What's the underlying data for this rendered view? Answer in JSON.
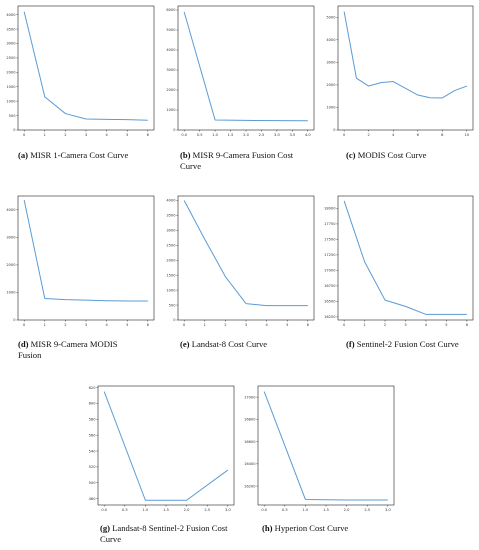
{
  "chart_data": [
    {
      "type": "line",
      "caption_label": "(a)",
      "caption_text": "MISR 1-Camera Cost Curve",
      "x": [
        0,
        1,
        2,
        3,
        4,
        5,
        6
      ],
      "values": [
        4100,
        1150,
        570,
        380,
        370,
        360,
        340
      ],
      "xticks": [
        0,
        1,
        2,
        3,
        4,
        5,
        6
      ],
      "xticklabels": [
        "0",
        "1",
        "2",
        "3",
        "4",
        "5",
        "6"
      ],
      "yticks": [
        0,
        500,
        1000,
        1500,
        2000,
        2500,
        3000,
        3500,
        4000
      ],
      "yticklabels": [
        "0",
        "500",
        "1000",
        "1500",
        "2000",
        "2500",
        "3000",
        "3500",
        "4000"
      ],
      "xlim": [
        -0.3,
        6.3
      ],
      "ylim": [
        0,
        4300
      ],
      "color": "#5b9bd5"
    },
    {
      "type": "line",
      "caption_label": "(b)",
      "caption_text": "MISR 9-Camera Fusion Cost Curve",
      "x": [
        0,
        1,
        2,
        3,
        4
      ],
      "values": [
        5900,
        500,
        480,
        470,
        460
      ],
      "xticks": [
        0,
        0.5,
        1,
        1.5,
        2,
        2.5,
        3,
        3.5,
        4
      ],
      "xticklabels": [
        "0.0",
        "0.5",
        "1.0",
        "1.5",
        "2.0",
        "2.5",
        "3.0",
        "3.5",
        "4.0"
      ],
      "yticks": [
        0,
        1000,
        2000,
        3000,
        4000,
        5000,
        6000
      ],
      "yticklabels": [
        "0",
        "1000",
        "2000",
        "3000",
        "4000",
        "5000",
        "6000"
      ],
      "xlim": [
        -0.2,
        4.2
      ],
      "ylim": [
        0,
        6200
      ],
      "color": "#5b9bd5"
    },
    {
      "type": "line",
      "caption_label": "(c)",
      "caption_text": "MODIS Cost Curve",
      "x": [
        0,
        1,
        2,
        3,
        4,
        5,
        6,
        7,
        8,
        9,
        10
      ],
      "values": [
        5250,
        2300,
        1950,
        2100,
        2150,
        1850,
        1550,
        1430,
        1420,
        1750,
        1950
      ],
      "xticks": [
        0,
        2,
        4,
        6,
        8,
        10
      ],
      "xticklabels": [
        "0",
        "2",
        "4",
        "6",
        "8",
        "10"
      ],
      "yticks": [
        0,
        1000,
        2000,
        3000,
        4000,
        5000
      ],
      "yticklabels": [
        "0",
        "1000",
        "2000",
        "3000",
        "4000",
        "5000"
      ],
      "xlim": [
        -0.5,
        10.5
      ],
      "ylim": [
        0,
        5500
      ],
      "color": "#5b9bd5"
    },
    {
      "type": "line",
      "caption_label": "(d)",
      "caption_text": "MISR 9-Camera MODIS Fusion",
      "x": [
        0,
        1,
        2,
        3,
        4,
        5,
        6
      ],
      "values": [
        4350,
        780,
        740,
        720,
        700,
        690,
        690
      ],
      "xticks": [
        0,
        1,
        2,
        3,
        4,
        5,
        6
      ],
      "xticklabels": [
        "0",
        "1",
        "2",
        "3",
        "4",
        "5",
        "6"
      ],
      "yticks": [
        0,
        1000,
        2000,
        3000,
        4000
      ],
      "yticklabels": [
        "0",
        "1000",
        "2000",
        "3000",
        "4000"
      ],
      "xlim": [
        -0.3,
        6.3
      ],
      "ylim": [
        0,
        4500
      ],
      "color": "#5b9bd5"
    },
    {
      "type": "line",
      "caption_label": "(e)",
      "caption_text": "Landsat-8 Cost Curve",
      "x": [
        0,
        1,
        2,
        3,
        4,
        5,
        6
      ],
      "values": [
        4000,
        2700,
        1450,
        550,
        480,
        480,
        480
      ],
      "xticks": [
        0,
        1,
        2,
        3,
        4,
        5,
        6
      ],
      "xticklabels": [
        "0",
        "1",
        "2",
        "3",
        "4",
        "5",
        "6"
      ],
      "yticks": [
        0,
        500,
        1000,
        1500,
        2000,
        2500,
        3000,
        3500,
        4000
      ],
      "yticklabels": [
        "0",
        "500",
        "1000",
        "1500",
        "2000",
        "2500",
        "3000",
        "3500",
        "4000"
      ],
      "xlim": [
        -0.3,
        6.3
      ],
      "ylim": [
        0,
        4150
      ],
      "color": "#5b9bd5"
    },
    {
      "type": "line",
      "caption_label": "(f)",
      "caption_text": "Sentinel-2 Fusion Cost Curve",
      "x": [
        0,
        1,
        2,
        3,
        4,
        5,
        6
      ],
      "values": [
        18120,
        17140,
        16520,
        16420,
        16290,
        16290,
        16290
      ],
      "xticks": [
        0,
        1,
        2,
        3,
        4,
        5,
        6
      ],
      "xticklabels": [
        "0",
        "1",
        "2",
        "3",
        "4",
        "5",
        "6"
      ],
      "yticks": [
        16250,
        16500,
        16750,
        17000,
        17250,
        17500,
        17750,
        18000
      ],
      "yticklabels": [
        "16250",
        "16500",
        "16750",
        "17000",
        "17250",
        "17500",
        "17750",
        "18000"
      ],
      "xlim": [
        -0.3,
        6.3
      ],
      "ylim": [
        16200,
        18200
      ],
      "color": "#5b9bd5"
    },
    {
      "type": "line",
      "caption_label": "(g)",
      "caption_text": "Landsat-8 Sentinel-2 Fusion Cost Curve",
      "x": [
        0,
        1,
        2,
        3
      ],
      "values": [
        615,
        478,
        478,
        516
      ],
      "xticks": [
        0,
        0.5,
        1,
        1.5,
        2,
        2.5,
        3
      ],
      "xticklabels": [
        "0.0",
        "0.5",
        "1.0",
        "1.5",
        "2.0",
        "2.5",
        "3.0"
      ],
      "yticks": [
        480,
        500,
        520,
        540,
        560,
        580,
        600,
        620
      ],
      "yticklabels": [
        "480",
        "500",
        "520",
        "540",
        "560",
        "580",
        "600",
        "620"
      ],
      "xlim": [
        -0.15,
        3.15
      ],
      "ylim": [
        472,
        622
      ],
      "color": "#5b9bd5"
    },
    {
      "type": "line",
      "caption_label": "(h)",
      "caption_text": "Hyperion Cost Curve",
      "x": [
        0,
        1,
        2,
        3
      ],
      "values": [
        17050,
        16080,
        16075,
        16075
      ],
      "xticks": [
        0,
        0.5,
        1,
        1.5,
        2,
        2.5,
        3
      ],
      "xticklabels": [
        "0.0",
        "0.5",
        "1.0",
        "1.5",
        "2.0",
        "2.5",
        "3.0"
      ],
      "yticks": [
        16200,
        16400,
        16600,
        16800,
        17000
      ],
      "yticklabels": [
        "16200",
        "16400",
        "16600",
        "16800",
        "17000"
      ],
      "xlim": [
        -0.15,
        3.15
      ],
      "ylim": [
        16030,
        17100
      ],
      "color": "#5b9bd5"
    }
  ]
}
